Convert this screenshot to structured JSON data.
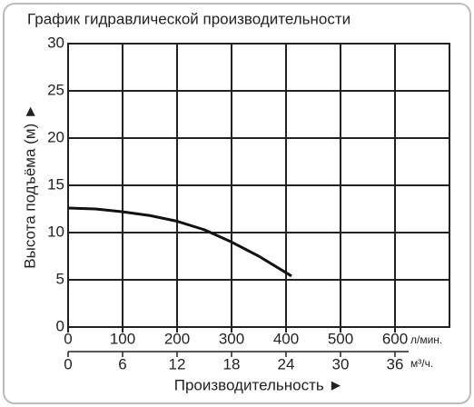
{
  "chart_data": {
    "type": "line",
    "title": "График гидравлической производительности",
    "y_label": "Высота подъёма (м) ►",
    "x_label": "Производительность ►",
    "x_unit": "л/мин.",
    "x2_unit": "м³/ч.",
    "x": [
      0,
      50,
      100,
      150,
      200,
      250,
      300,
      350,
      410
    ],
    "values": [
      12.6,
      12.5,
      12.2,
      11.8,
      11.2,
      10.3,
      9.0,
      7.5,
      5.4
    ],
    "color": "#111111",
    "xlim": [
      0,
      700
    ],
    "xticks": [
      0,
      100,
      200,
      300,
      400,
      500,
      600
    ],
    "x2lim": [
      0,
      42
    ],
    "x2ticks": [
      0,
      6,
      12,
      18,
      24,
      30,
      36
    ],
    "ylim": [
      0,
      30
    ],
    "yticks": [
      0,
      5,
      10,
      15,
      20,
      25,
      30
    ],
    "grid": true
  }
}
